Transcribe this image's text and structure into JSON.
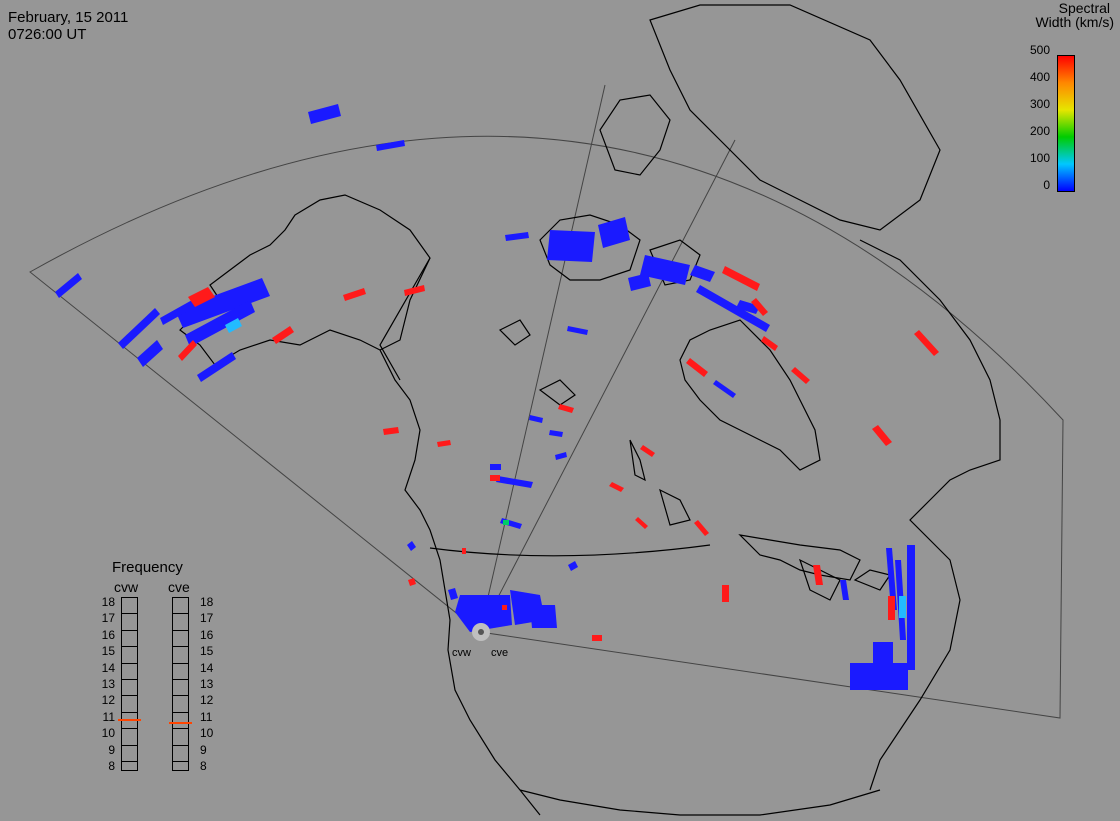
{
  "header": {
    "date": "February, 15 2011",
    "time": "0726:00 UT"
  },
  "colorbar": {
    "title_line1": "Spectral",
    "title_line2": "Width (km/s)",
    "ticks": [
      "500",
      "400",
      "300",
      "200",
      "100",
      "0"
    ],
    "colors": [
      "#0000ff",
      "#00c8ff",
      "#00cc00",
      "#e6e600",
      "#ff8800",
      "#ff0000"
    ]
  },
  "frequency": {
    "title": "Frequency",
    "radars": [
      {
        "name": "cvw",
        "current_freq": 10.8
      },
      {
        "name": "cve",
        "current_freq": 10.6
      }
    ],
    "scale": [
      "18",
      "17",
      "16",
      "15",
      "14",
      "13",
      "12",
      "11",
      "10",
      "9",
      "8"
    ]
  },
  "stations": [
    {
      "name": "cvw"
    },
    {
      "name": "cve"
    }
  ],
  "map_colors": {
    "background": "#969696",
    "coast": "#000000",
    "fov": "#444444",
    "low_width": "#1a1aff",
    "high_width": "#ff1a1a"
  }
}
